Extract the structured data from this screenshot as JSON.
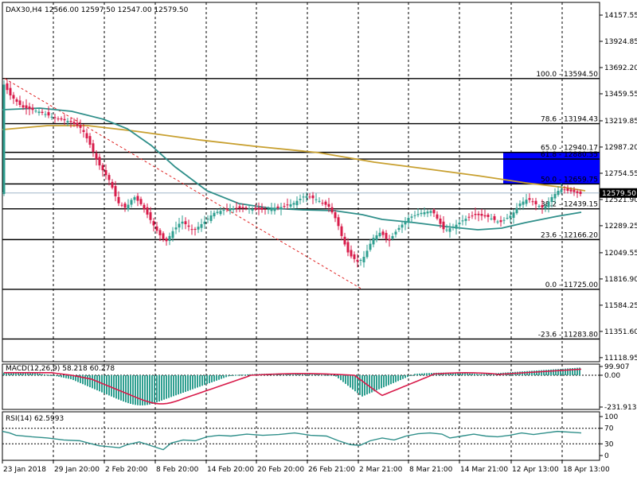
{
  "chart_data": [
    {
      "type": "candlestick",
      "symbol_header": "DAX30,H4",
      "ohlc_header": "12566.00 12597.50 12547.00 12579.50",
      "current_price": 12579.5,
      "current_price_label": "12579.50",
      "y_ticks": [
        {
          "value": 14157.55,
          "label": "14157.55"
        },
        {
          "value": 13924.85,
          "label": "13924.85"
        },
        {
          "value": 13692.2,
          "label": "13692.20"
        },
        {
          "value": 13459.55,
          "label": "13459.55"
        },
        {
          "value": 13219.85,
          "label": "13219.85"
        },
        {
          "value": 12987.2,
          "label": "12987.20"
        },
        {
          "value": 12754.55,
          "label": "12754.55"
        },
        {
          "value": 12521.9,
          "label": "12521.90"
        },
        {
          "value": 12289.25,
          "label": "12289.25"
        },
        {
          "value": 12049.55,
          "label": "12049.55"
        },
        {
          "value": 11816.9,
          "label": "11816.90"
        },
        {
          "value": 11584.25,
          "label": "11584.25"
        },
        {
          "value": 11351.6,
          "label": "11351.60"
        },
        {
          "value": 11118.95,
          "label": "11118.95"
        }
      ],
      "x_ticks": [
        "23 Jan 2018",
        "29 Jan 20:00",
        "2 Feb 20:00",
        "8 Feb 20:00",
        "14 Feb 20:00",
        "20 Feb 20:00",
        "26 Feb 21:00",
        "2 Mar 21:00",
        "8 Mar 21:00",
        "14 Mar 21:00",
        "12 Apr 13:00",
        "18 Apr 13:00"
      ],
      "fibonacci_levels": [
        {
          "value": 13594.5,
          "label": "100.0 - 13594.50"
        },
        {
          "value": 13194.43,
          "label": "78.6 - 13194.43"
        },
        {
          "value": 12940.17,
          "label": "65.0 - 12940.17"
        },
        {
          "value": 12880.35,
          "label": "61.8 - 12880.35"
        },
        {
          "value": 12659.75,
          "label": "50.0 - 12659.75"
        },
        {
          "value": 12439.15,
          "label": "38.2 - 12439.15"
        },
        {
          "value": 12166.2,
          "label": "23.6 - 12166.20"
        },
        {
          "value": 11725.0,
          "label": "0.0 - 11725.00"
        },
        {
          "value": 11283.8,
          "label": "-23.6 - 11283.80"
        }
      ],
      "fib_zone": {
        "from": 12659.75,
        "to": 12940.17,
        "color": "#0000ff"
      },
      "trendline": {
        "from": {
          "x": "23 Jan 2018",
          "y": 13594.5
        },
        "to": {
          "x": "2 Mar 21:00",
          "y": 11725.0
        },
        "color": "#e02020",
        "style": "dashed"
      },
      "colors": {
        "bull": "#2f9f90",
        "bear": "#d81b4a",
        "ma_fast": "#2f8f8a",
        "ma_slow": "#c8a030",
        "grid": "#000000"
      }
    },
    {
      "type": "macd",
      "label": "MACD(12,26,9) 58.218 60.278",
      "y_ticks": [
        {
          "value": 99.907,
          "label": "99.907"
        },
        {
          "value": 0.0,
          "label": "0.00"
        },
        {
          "value": -231.913,
          "label": "-231.913"
        }
      ],
      "colors": {
        "histogram": "#2f9f90",
        "signal": "#d81b4a"
      }
    },
    {
      "type": "rsi",
      "label": "RSI(14) 62.5993",
      "y_ticks": [
        {
          "value": 100,
          "label": "100"
        },
        {
          "value": 70,
          "label": "70"
        },
        {
          "value": 30,
          "label": "30"
        },
        {
          "value": 0,
          "label": "0"
        }
      ],
      "color": "#2f8f8a"
    }
  ]
}
